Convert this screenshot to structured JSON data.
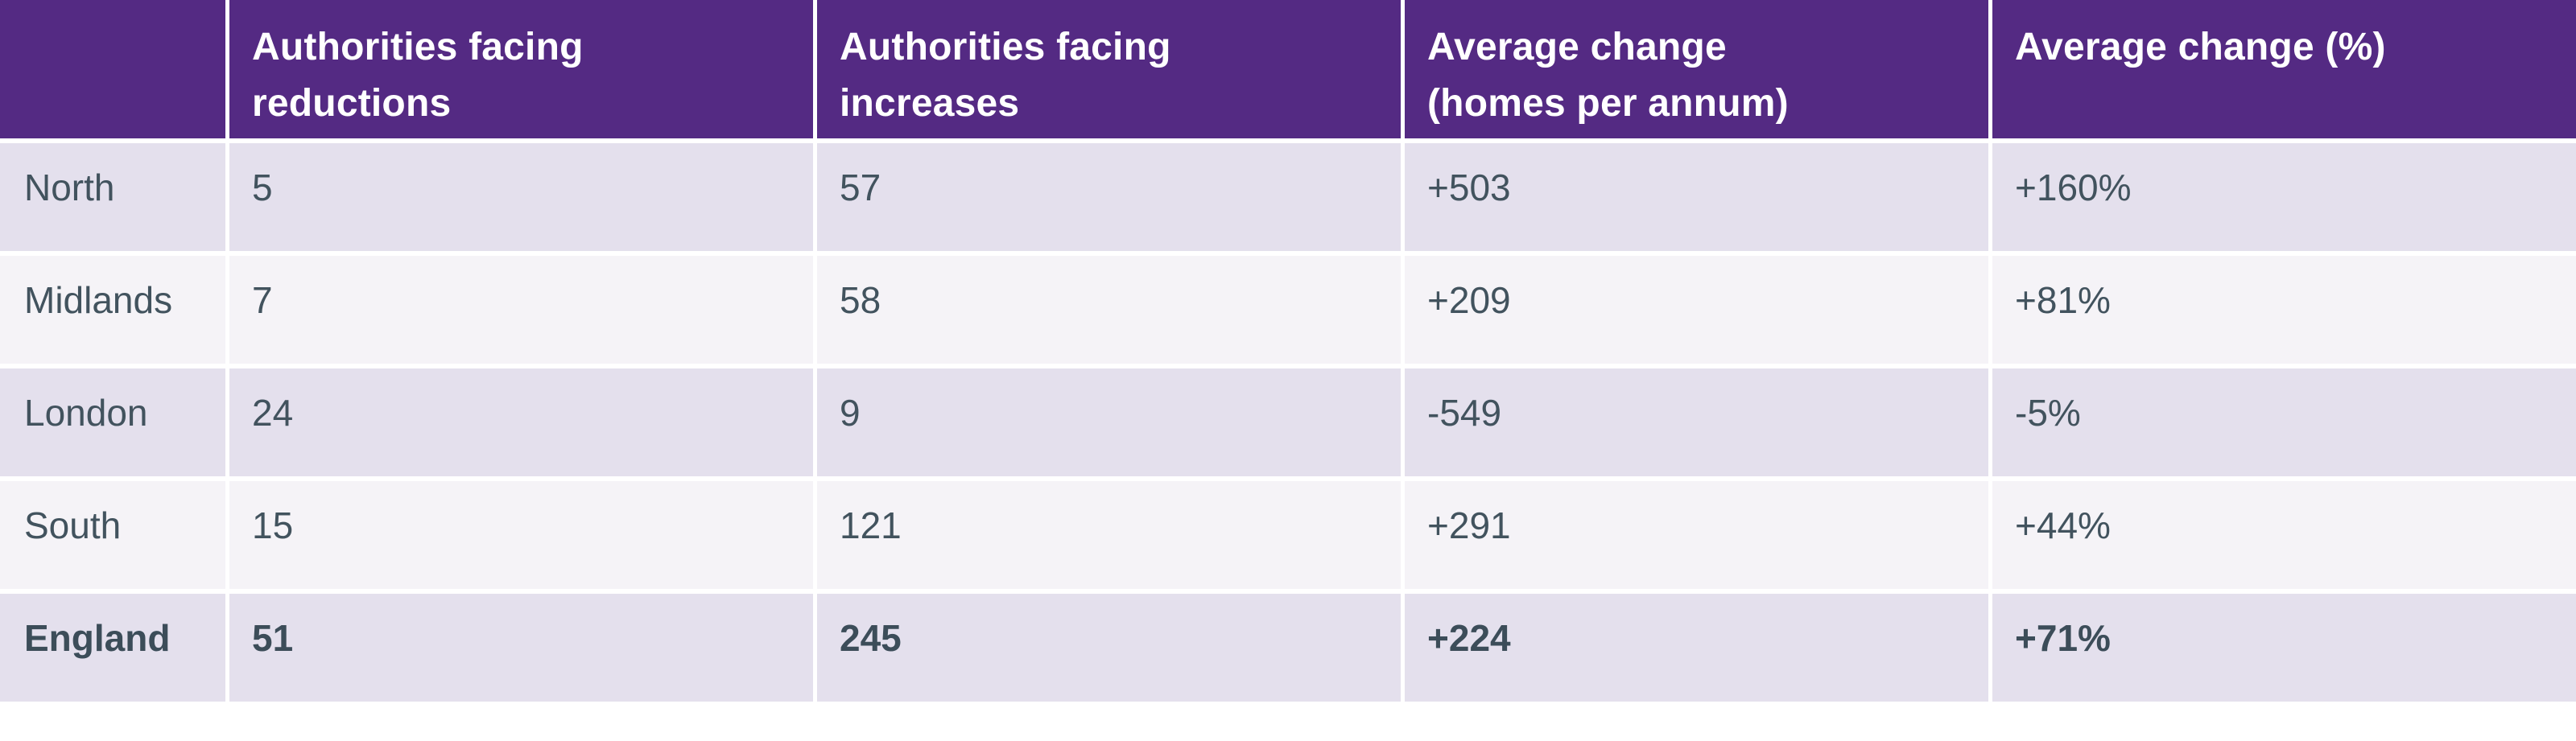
{
  "colors": {
    "header_background": "#542a83",
    "header_text": "#ffffff",
    "row_shade_dark": "#e4e0ed",
    "row_shade_light": "#f5f3f7",
    "body_text": "#42535e",
    "divider": "#ffffff"
  },
  "table": {
    "columns": [
      {
        "label": ""
      },
      {
        "label": "Authorities facing\nreductions"
      },
      {
        "label": "Authorities facing\nincreases"
      },
      {
        "label": "Average change\n(homes per annum)"
      },
      {
        "label": "Average change (%)"
      }
    ],
    "rows": [
      {
        "cells": [
          "North",
          "5",
          "57",
          "+503",
          "+160%"
        ]
      },
      {
        "cells": [
          "Midlands",
          "7",
          "58",
          "+209",
          "+81%"
        ]
      },
      {
        "cells": [
          "London",
          "24",
          "9",
          "-549",
          "-5%"
        ]
      },
      {
        "cells": [
          "South",
          "15",
          "121",
          "+291",
          "+44%"
        ]
      },
      {
        "cells": [
          "England",
          "51",
          "245",
          "+224",
          "+71%"
        ]
      }
    ]
  },
  "chart_data": {
    "type": "table",
    "columns": [
      "",
      "Authorities facing reductions",
      "Authorities facing increases",
      "Average change (homes per annum)",
      "Average change (%)"
    ],
    "rows": [
      [
        "North",
        5,
        57,
        "+503",
        "+160%"
      ],
      [
        "Midlands",
        7,
        58,
        "+209",
        "+81%"
      ],
      [
        "London",
        24,
        9,
        "-549",
        "-5%"
      ],
      [
        "South",
        15,
        121,
        "+291",
        "+44%"
      ],
      [
        "England",
        51,
        245,
        "+224",
        "+71%"
      ]
    ],
    "notes": "England row is a bold total row; rows alternate lavender/light shading; purple header band"
  }
}
